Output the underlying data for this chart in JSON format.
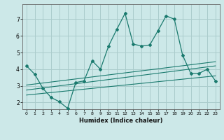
{
  "xlabel": "Humidex (Indice chaleur)",
  "bg_color": "#cce8e8",
  "grid_color": "#aacccc",
  "line_color": "#1a7a6e",
  "xlim": [
    -0.5,
    23.5
  ],
  "ylim": [
    1.6,
    7.9
  ],
  "xticks": [
    0,
    1,
    2,
    3,
    4,
    5,
    6,
    7,
    8,
    9,
    10,
    11,
    12,
    13,
    14,
    15,
    16,
    17,
    18,
    19,
    20,
    21,
    22,
    23
  ],
  "yticks": [
    2,
    3,
    4,
    5,
    6,
    7
  ],
  "main_x": [
    0,
    1,
    2,
    3,
    4,
    5,
    6,
    7,
    8,
    9,
    10,
    11,
    12,
    13,
    14,
    15,
    16,
    17,
    18,
    19,
    20,
    21,
    22,
    23
  ],
  "main_y": [
    4.2,
    3.7,
    2.85,
    2.3,
    2.05,
    1.65,
    3.2,
    3.3,
    4.5,
    4.0,
    5.4,
    6.4,
    7.35,
    5.5,
    5.4,
    5.45,
    6.3,
    7.2,
    7.0,
    4.85,
    3.75,
    3.75,
    4.0,
    3.3
  ],
  "line1_x": [
    0,
    23
  ],
  "line1_y": [
    3.05,
    4.45
  ],
  "line2_x": [
    0,
    23
  ],
  "line2_y": [
    2.75,
    4.2
  ],
  "line3_x": [
    0,
    23
  ],
  "line3_y": [
    2.45,
    3.6
  ]
}
